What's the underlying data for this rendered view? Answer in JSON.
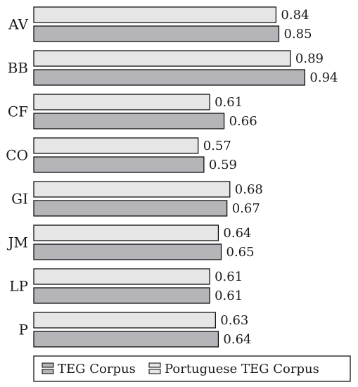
{
  "chart_data": {
    "type": "bar",
    "orientation": "horizontal",
    "categories": [
      "AV",
      "BB",
      "CF",
      "CO",
      "GI",
      "JM",
      "LP",
      "P"
    ],
    "series": [
      {
        "name": "Portuguese TEG Corpus",
        "color": "#e6e6e6",
        "values": [
          0.84,
          0.89,
          0.61,
          0.57,
          0.68,
          0.64,
          0.61,
          0.63
        ],
        "labels": [
          "0.84",
          "0.89",
          "0.61",
          "0.57",
          "0.68",
          "0.64",
          "0.61",
          "0.63"
        ]
      },
      {
        "name": "TEG Corpus",
        "color": "#b4b4b9",
        "values": [
          0.85,
          0.94,
          0.66,
          0.59,
          0.67,
          0.65,
          0.61,
          0.64
        ],
        "labels": [
          "0.85",
          "0.94",
          "0.66",
          "0.59",
          "0.67",
          "0.65",
          "0.61",
          "0.64"
        ]
      }
    ],
    "legend": {
      "placement": "bottom",
      "order": [
        "TEG Corpus",
        "Portuguese TEG Corpus"
      ]
    },
    "grid": false
  }
}
